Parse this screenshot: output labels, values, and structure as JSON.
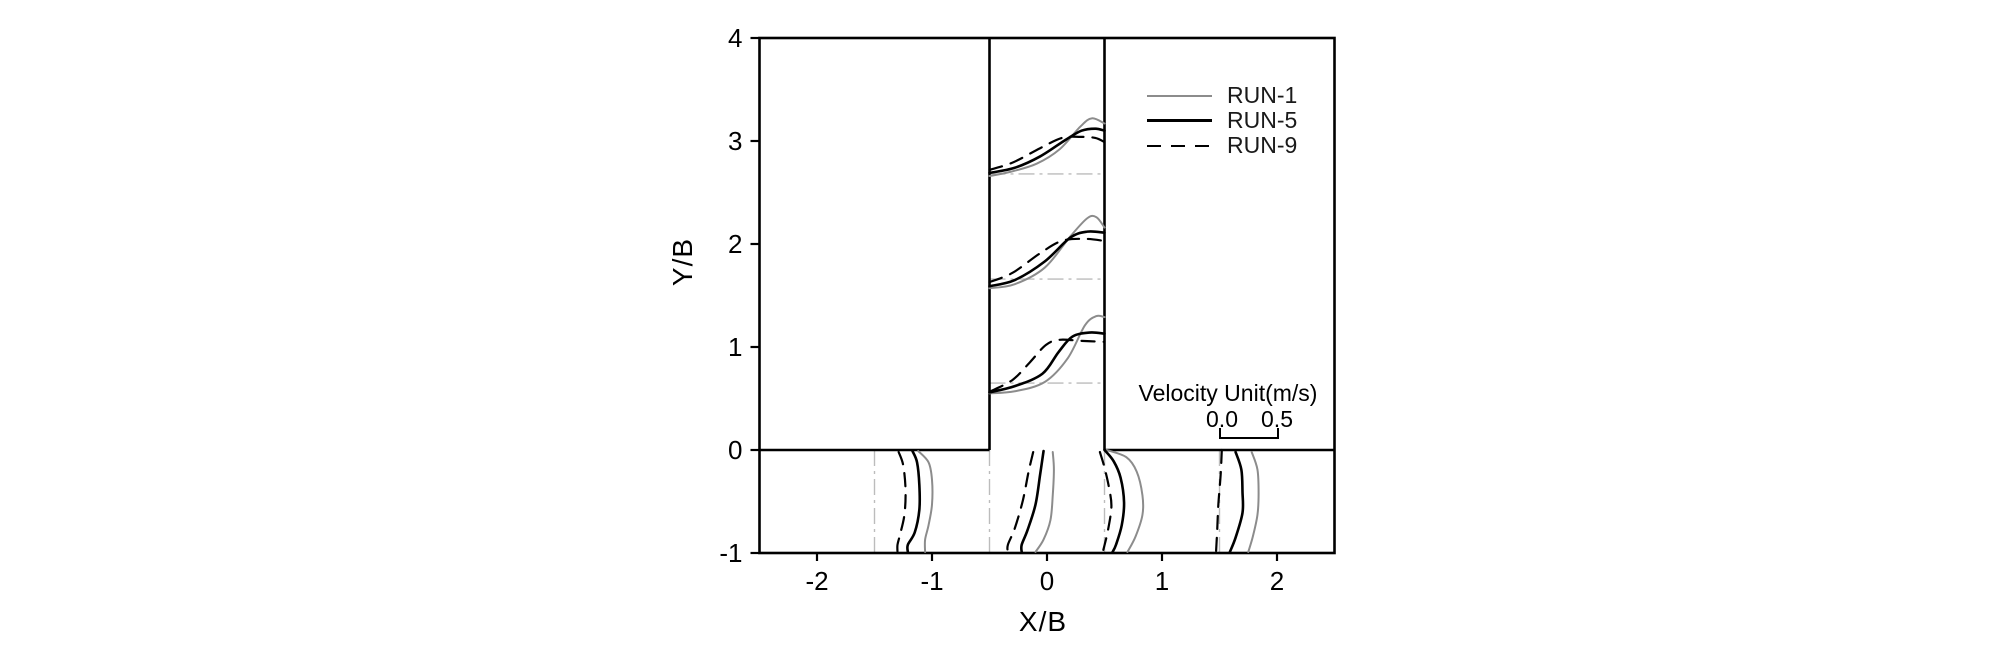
{
  "figure": {
    "background": "#ffffff"
  },
  "chart_data": {
    "type": "line",
    "title": "",
    "xlabel": "X/B",
    "ylabel": "Y/B",
    "xlim": [
      -2.5,
      2.5
    ],
    "ylim": [
      -1,
      4
    ],
    "grid": false,
    "xticks": [
      {
        "label": "-2",
        "value": -2
      },
      {
        "label": "-1",
        "value": -1
      },
      {
        "label": "0",
        "value": 0
      },
      {
        "label": "1",
        "value": 1
      },
      {
        "label": "2",
        "value": 2
      }
    ],
    "yticks": [
      {
        "label": "-1",
        "value": -1
      },
      {
        "label": "0",
        "value": 0
      },
      {
        "label": "1",
        "value": 1
      },
      {
        "label": "2",
        "value": 2
      },
      {
        "label": "3",
        "value": 3
      },
      {
        "label": "4",
        "value": 4
      }
    ],
    "legend": {
      "position": "inside-upper-right-block",
      "entries": [
        {
          "name": "RUN-1",
          "color": "#8c8c8c",
          "dash": null,
          "width": 2
        },
        {
          "name": "RUN-5",
          "color": "#000000",
          "dash": null,
          "width": 2.6
        },
        {
          "name": "RUN-9",
          "color": "#000000",
          "dash": "14 10",
          "width": 2.2
        }
      ]
    },
    "scale_bar": {
      "title": "Velocity Unit(m/s)",
      "labels": [
        "0.0",
        "0.5"
      ],
      "x_span": [
        1.5,
        2.0
      ],
      "velocity_mps": 0.5
    },
    "channel_walls": {
      "color": "#000000",
      "border": [
        [
          -2.5,
          -1
        ],
        [
          2.5,
          4
        ]
      ],
      "segments": [
        [
          [
            -0.5,
            0
          ],
          [
            -0.5,
            4
          ]
        ],
        [
          [
            0.5,
            0
          ],
          [
            0.5,
            4
          ]
        ],
        [
          [
            -2.5,
            0
          ],
          [
            -0.5,
            0
          ]
        ],
        [
          [
            0.5,
            0
          ],
          [
            2.5,
            0
          ]
        ]
      ]
    },
    "station_baselines": {
      "color": "#bcbcbc",
      "branch_y": [
        2.68,
        1.66,
        0.65
      ],
      "branch_x_span": [
        -0.5,
        0.5
      ],
      "main_x": [
        -1.5,
        -0.5,
        0.5,
        1.5
      ],
      "main_y_span": [
        0,
        -1
      ]
    },
    "series": [
      {
        "name": "RUN-1",
        "color": "#8c8c8c",
        "width": 2.0,
        "dash": null,
        "branch_profiles": [
          [
            [
              -0.5,
              2.66
            ],
            [
              -0.32,
              2.7
            ],
            [
              -0.09,
              2.78
            ],
            [
              0.11,
              2.92
            ],
            [
              0.29,
              3.14
            ],
            [
              0.39,
              3.22
            ],
            [
              0.5,
              3.17
            ]
          ],
          [
            [
              -0.5,
              1.57
            ],
            [
              -0.28,
              1.61
            ],
            [
              -0.02,
              1.77
            ],
            [
              0.2,
              2.07
            ],
            [
              0.35,
              2.25
            ],
            [
              0.43,
              2.26
            ],
            [
              0.5,
              2.16
            ]
          ],
          [
            [
              -0.5,
              0.55
            ],
            [
              -0.28,
              0.57
            ],
            [
              -0.02,
              0.66
            ],
            [
              0.18,
              0.89
            ],
            [
              0.33,
              1.21
            ],
            [
              0.43,
              1.3
            ],
            [
              0.5,
              1.29
            ]
          ]
        ],
        "main_profiles": [
          [
            [
              -1.12,
              -0.01
            ],
            [
              -1.03,
              -0.12
            ],
            [
              -1.0,
              -0.29
            ],
            [
              -1.0,
              -0.53
            ],
            [
              -1.03,
              -0.73
            ],
            [
              -1.06,
              -0.87
            ],
            [
              -1.06,
              -0.99
            ]
          ],
          [
            [
              0.05,
              -0.02
            ],
            [
              0.06,
              -0.19
            ],
            [
              0.05,
              -0.44
            ],
            [
              0.03,
              -0.68
            ],
            [
              -0.03,
              -0.87
            ],
            [
              -0.1,
              -0.99
            ]
          ],
          [
            [
              0.52,
              0.0
            ],
            [
              0.69,
              -0.07
            ],
            [
              0.78,
              -0.21
            ],
            [
              0.83,
              -0.44
            ],
            [
              0.83,
              -0.63
            ],
            [
              0.77,
              -0.84
            ],
            [
              0.7,
              -0.99
            ]
          ],
          [
            [
              1.78,
              -0.02
            ],
            [
              1.83,
              -0.19
            ],
            [
              1.84,
              -0.42
            ],
            [
              1.83,
              -0.63
            ],
            [
              1.79,
              -0.84
            ],
            [
              1.75,
              -0.99
            ]
          ]
        ]
      },
      {
        "name": "RUN-5",
        "color": "#000000",
        "width": 2.6,
        "dash": null,
        "branch_profiles": [
          [
            [
              -0.5,
              2.69
            ],
            [
              -0.28,
              2.74
            ],
            [
              -0.06,
              2.85
            ],
            [
              0.16,
              3.01
            ],
            [
              0.3,
              3.1
            ],
            [
              0.42,
              3.12
            ],
            [
              0.5,
              3.1
            ]
          ],
          [
            [
              -0.5,
              1.59
            ],
            [
              -0.28,
              1.65
            ],
            [
              -0.02,
              1.83
            ],
            [
              0.2,
              2.06
            ],
            [
              0.35,
              2.12
            ],
            [
              0.5,
              2.11
            ]
          ],
          [
            [
              -0.5,
              0.56
            ],
            [
              -0.28,
              0.62
            ],
            [
              -0.04,
              0.74
            ],
            [
              0.1,
              0.95
            ],
            [
              0.22,
              1.1
            ],
            [
              0.37,
              1.14
            ],
            [
              0.5,
              1.13
            ]
          ]
        ],
        "main_profiles": [
          [
            [
              -1.17,
              -0.01
            ],
            [
              -1.13,
              -0.12
            ],
            [
              -1.11,
              -0.34
            ],
            [
              -1.11,
              -0.58
            ],
            [
              -1.15,
              -0.8
            ],
            [
              -1.21,
              -0.92
            ],
            [
              -1.21,
              -0.99
            ]
          ],
          [
            [
              -0.03,
              -0.01
            ],
            [
              -0.06,
              -0.24
            ],
            [
              -0.1,
              -0.53
            ],
            [
              -0.17,
              -0.78
            ],
            [
              -0.22,
              -0.92
            ],
            [
              -0.22,
              -0.99
            ]
          ],
          [
            [
              0.5,
              0.0
            ],
            [
              0.58,
              -0.11
            ],
            [
              0.64,
              -0.27
            ],
            [
              0.67,
              -0.51
            ],
            [
              0.65,
              -0.73
            ],
            [
              0.6,
              -0.92
            ],
            [
              0.57,
              -0.99
            ]
          ],
          [
            [
              1.64,
              -0.02
            ],
            [
              1.69,
              -0.19
            ],
            [
              1.7,
              -0.41
            ],
            [
              1.7,
              -0.61
            ],
            [
              1.64,
              -0.85
            ],
            [
              1.59,
              -0.99
            ]
          ]
        ]
      },
      {
        "name": "RUN-9",
        "color": "#000000",
        "width": 2.2,
        "dash": "13 9",
        "branch_profiles": [
          [
            [
              -0.5,
              2.72
            ],
            [
              -0.3,
              2.79
            ],
            [
              -0.06,
              2.93
            ],
            [
              0.13,
              3.03
            ],
            [
              0.29,
              3.04
            ],
            [
              0.42,
              3.03
            ],
            [
              0.5,
              2.99
            ]
          ],
          [
            [
              -0.5,
              1.63
            ],
            [
              -0.3,
              1.72
            ],
            [
              -0.06,
              1.91
            ],
            [
              0.13,
              2.03
            ],
            [
              0.33,
              2.05
            ],
            [
              0.5,
              2.03
            ]
          ],
          [
            [
              -0.49,
              0.57
            ],
            [
              -0.3,
              0.68
            ],
            [
              -0.15,
              0.85
            ],
            [
              -0.01,
              1.02
            ],
            [
              0.11,
              1.07
            ],
            [
              0.29,
              1.06
            ],
            [
              0.5,
              1.05
            ]
          ]
        ],
        "main_profiles": [
          [
            [
              -1.29,
              -0.02
            ],
            [
              -1.25,
              -0.15
            ],
            [
              -1.23,
              -0.39
            ],
            [
              -1.24,
              -0.63
            ],
            [
              -1.28,
              -0.83
            ],
            [
              -1.3,
              -0.92
            ],
            [
              -1.3,
              -0.99
            ]
          ],
          [
            [
              -0.12,
              -0.02
            ],
            [
              -0.16,
              -0.21
            ],
            [
              -0.21,
              -0.49
            ],
            [
              -0.28,
              -0.76
            ],
            [
              -0.34,
              -0.92
            ],
            [
              -0.34,
              -0.99
            ]
          ],
          [
            [
              0.46,
              -0.02
            ],
            [
              0.5,
              -0.17
            ],
            [
              0.54,
              -0.37
            ],
            [
              0.56,
              -0.55
            ],
            [
              0.53,
              -0.78
            ],
            [
              0.49,
              -0.97
            ]
          ],
          [
            [
              1.52,
              0.0
            ],
            [
              1.51,
              -0.24
            ],
            [
              1.49,
              -0.53
            ],
            [
              1.48,
              -0.78
            ],
            [
              1.47,
              -0.99
            ]
          ]
        ]
      }
    ]
  }
}
